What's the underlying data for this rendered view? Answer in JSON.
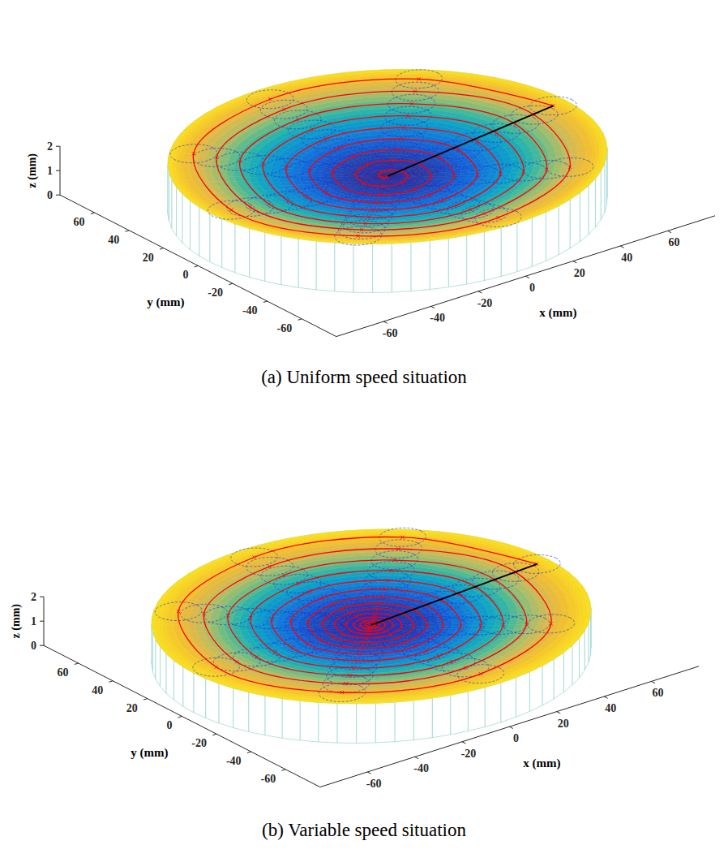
{
  "chart_data": [
    {
      "type": "surface3d",
      "title": "(a) Uniform speed situation",
      "xlabel": "x (mm)",
      "ylabel": "y (mm)",
      "zlabel": "z (mm)",
      "xlim": [
        -80,
        80
      ],
      "ylim": [
        -80,
        80
      ],
      "zlim": [
        0,
        2
      ],
      "xticks": [
        -60,
        -40,
        -20,
        0,
        20,
        40,
        60
      ],
      "yticks": [
        -60,
        -40,
        -20,
        0,
        20,
        40,
        60
      ],
      "zticks": [
        0,
        1,
        2
      ],
      "surface": {
        "r": [
          0,
          10,
          20,
          30,
          40,
          50,
          60,
          70,
          75
        ],
        "z": [
          1.2,
          1.22,
          1.27,
          1.35,
          1.46,
          1.6,
          1.76,
          1.92,
          2.0
        ]
      },
      "spiral": {
        "color": "#ff0000",
        "marker": "x",
        "theta": [
          0,
          45,
          90,
          135,
          180,
          225,
          270,
          315,
          360,
          405,
          450,
          495,
          540,
          585,
          630,
          675,
          720,
          765,
          810,
          855,
          900,
          945,
          990,
          1035,
          1080,
          1125,
          1170,
          1215,
          1260,
          1305,
          1350,
          1395,
          1440,
          1485,
          1530,
          1575,
          1620,
          1665,
          1710,
          1755,
          1800,
          1845,
          1890,
          1935,
          1980,
          2025,
          2070,
          2115,
          2160,
          2205,
          2250,
          2295,
          2340,
          2385,
          2430,
          2475,
          2520,
          2565,
          2610,
          2655,
          2700,
          2745,
          2790,
          2835,
          2880,
          2925,
          2970,
          3015,
          3060,
          3105,
          3150
        ],
        "r": [
          70,
          69,
          68,
          67,
          66,
          65,
          64,
          63,
          62,
          61,
          60,
          59,
          58,
          57,
          56,
          55,
          54,
          53,
          52,
          51,
          50,
          49,
          48,
          47,
          46,
          45,
          44,
          43,
          42,
          41,
          40,
          39,
          38,
          37,
          36,
          35,
          34,
          33,
          32,
          31,
          30,
          29,
          28,
          27,
          26,
          25,
          24,
          23,
          22,
          21,
          20,
          19,
          18,
          17,
          16,
          15,
          14,
          13,
          12,
          11,
          10,
          9,
          8,
          7,
          6,
          5,
          4,
          3,
          2,
          1,
          0
        ]
      },
      "tool_circles": {
        "radius": 8,
        "color": "#1a2fd6",
        "line_style": "dashed"
      },
      "lead_line": {
        "x": [
          0,
          70
        ],
        "y": [
          0,
          0
        ],
        "z": [
          1.2,
          1.92
        ],
        "color": "#000000"
      }
    },
    {
      "type": "surface3d",
      "title": "(b) Variable speed situation",
      "xlabel": "x (mm)",
      "ylabel": "y (mm)",
      "zlabel": "z (mm)",
      "xlim": [
        -80,
        80
      ],
      "ylim": [
        -80,
        80
      ],
      "zlim": [
        0,
        2
      ],
      "xticks": [
        -60,
        -40,
        -20,
        0,
        20,
        40,
        60
      ],
      "yticks": [
        -60,
        -40,
        -20,
        0,
        20,
        40,
        60
      ],
      "zticks": [
        0,
        1,
        2
      ],
      "surface": {
        "r": [
          0,
          10,
          20,
          30,
          40,
          50,
          60,
          70,
          75
        ],
        "z": [
          1.27,
          1.28,
          1.3,
          1.34,
          1.4,
          1.47,
          1.54,
          1.6,
          1.62
        ]
      },
      "spiral": {
        "color": "#ff0000",
        "marker": "x",
        "theta": [
          0,
          45,
          90,
          135,
          180,
          225,
          270,
          315,
          360,
          405,
          450,
          495,
          540,
          585,
          630,
          675,
          720,
          765,
          810,
          855,
          900,
          945,
          990,
          1035,
          1080,
          1125,
          1170,
          1215,
          1260,
          1305,
          1350,
          1395,
          1440,
          1485,
          1530,
          1575,
          1620,
          1665,
          1710,
          1755,
          1800,
          1845,
          1890,
          1935,
          1980,
          2025,
          2070,
          2115,
          2160,
          2205,
          2250,
          2295,
          2340,
          2385,
          2430,
          2475,
          2520,
          2565,
          2610,
          2655,
          2700,
          2745,
          2790,
          2835,
          2880,
          2925,
          2970,
          3015,
          3060,
          3105,
          3150,
          3195,
          3240,
          3285,
          3330,
          3375,
          3420,
          3465,
          3510,
          3555,
          3600,
          3645,
          3690,
          3735,
          3780,
          3825,
          3870,
          3915,
          3960,
          4005,
          4050,
          4095,
          4140,
          4185,
          4230,
          4275,
          4320,
          4365,
          4410,
          4455,
          4500,
          4545,
          4590,
          4635,
          4680
        ],
        "r": [
          70,
          68.9,
          67.8,
          66.6,
          65.5,
          64.4,
          63.3,
          62.1,
          61,
          59.9,
          58.9,
          57.8,
          56.8,
          55.7,
          54.6,
          53.6,
          52.5,
          51.5,
          50.5,
          49.5,
          48.5,
          47.5,
          46.5,
          45.5,
          44.5,
          43.6,
          42.6,
          41.7,
          40.8,
          39.8,
          38.9,
          37.9,
          37,
          36.1,
          35.3,
          34.4,
          33.5,
          32.6,
          31.8,
          30.9,
          30,
          29.3,
          28.5,
          27.8,
          27,
          26.3,
          25.5,
          24.8,
          24,
          23.3,
          22.6,
          21.9,
          21.3,
          20.6,
          19.9,
          19.2,
          18.5,
          17.9,
          17.4,
          16.8,
          16.3,
          15.7,
          15.1,
          14.6,
          14,
          13.5,
          13,
          12.5,
          12,
          11.5,
          11,
          10.5,
          10,
          9.6,
          9.3,
          8.9,
          8.5,
          8.1,
          7.8,
          7.4,
          7,
          6.7,
          6.4,
          6.1,
          5.8,
          5.4,
          5.1,
          4.8,
          4.5,
          4.3,
          4,
          3.8,
          3.5,
          3.3,
          3,
          2.8,
          2.5,
          2.3,
          2.1,
          1.9,
          1.8,
          1.6,
          1.4,
          1.2,
          1
        ]
      },
      "tool_circles": {
        "radius": 8,
        "color": "#1a2fd6",
        "line_style": "dashed"
      },
      "lead_line": {
        "x": [
          0,
          70
        ],
        "y": [
          0,
          0
        ],
        "z": [
          1.27,
          1.6
        ],
        "color": "#000000"
      }
    }
  ]
}
